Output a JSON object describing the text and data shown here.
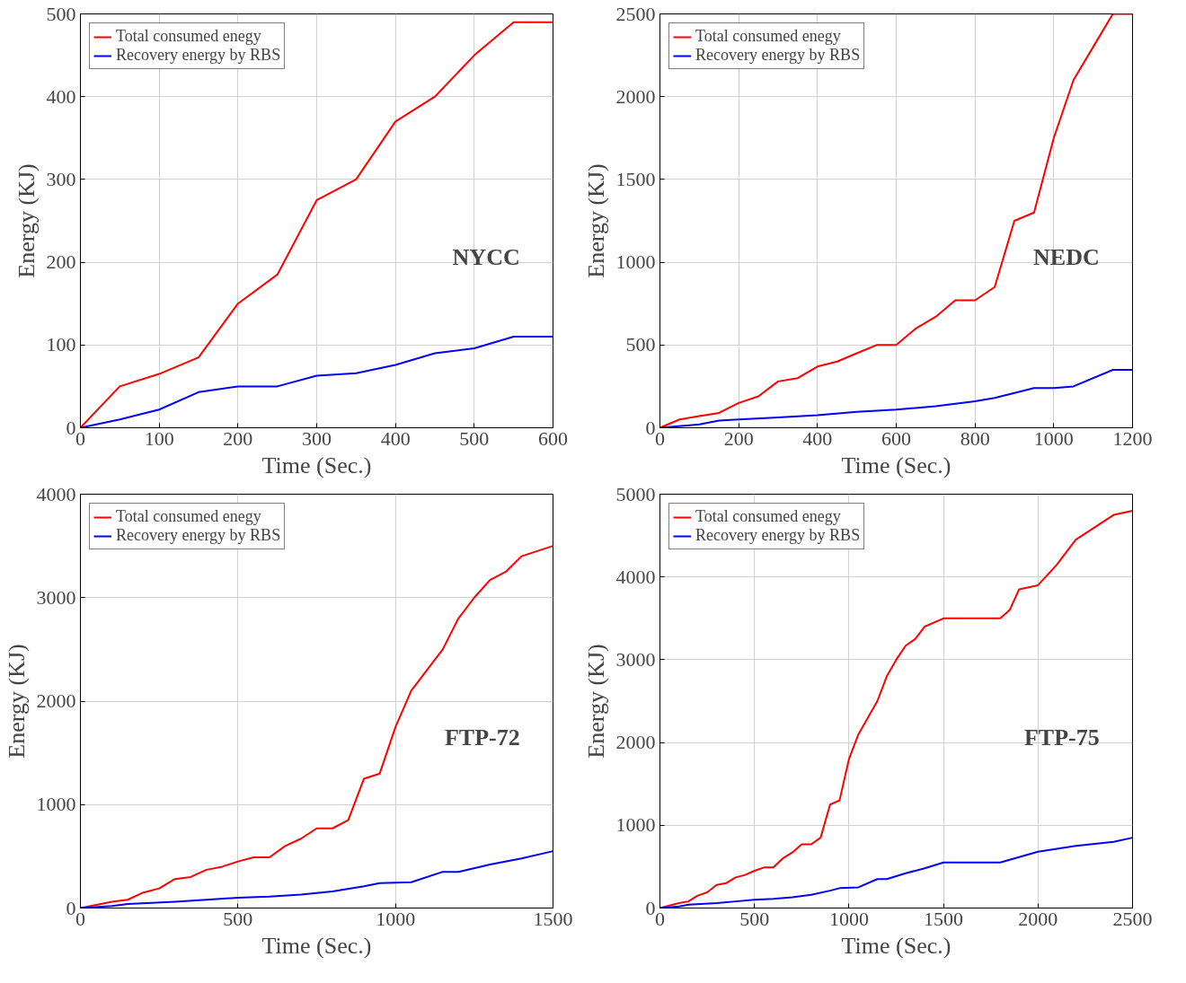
{
  "chart_data": [
    {
      "type": "line",
      "xlabel": "Time (Sec.)",
      "ylabel": "Energy (KJ)",
      "annotations": [
        "NYCC"
      ],
      "xlim": [
        0,
        600
      ],
      "ylim": [
        0,
        500
      ],
      "xticks": [
        0,
        100,
        200,
        300,
        400,
        500,
        600
      ],
      "yticks": [
        0,
        100,
        200,
        300,
        400,
        500
      ],
      "grid": true,
      "legend": "top left",
      "series": [
        {
          "name": "Total consumed enegy",
          "color": "#ff0000",
          "x": [
            0,
            50,
            100,
            150,
            200,
            250,
            300,
            350,
            400,
            450,
            500,
            550,
            600
          ],
          "values": [
            0,
            50,
            65,
            85,
            150,
            185,
            275,
            300,
            370,
            400,
            450,
            490,
            490
          ]
        },
        {
          "name": "Recovery energy by RBS",
          "color": "#0000ff",
          "x": [
            0,
            50,
            100,
            150,
            200,
            250,
            300,
            350,
            400,
            450,
            500,
            550,
            600
          ],
          "values": [
            0,
            10,
            22,
            43,
            50,
            50,
            63,
            66,
            76,
            90,
            96,
            110,
            110
          ]
        }
      ]
    },
    {
      "type": "line",
      "xlabel": "Time (Sec.)",
      "ylabel": "Energy (KJ)",
      "annotations": [
        "NEDC"
      ],
      "xlim": [
        0,
        1200
      ],
      "ylim": [
        0,
        2500
      ],
      "xticks": [
        0,
        200,
        400,
        600,
        800,
        1000,
        1200
      ],
      "yticks": [
        0,
        500,
        1000,
        1500,
        2000,
        2500
      ],
      "grid": true,
      "legend": "top left",
      "series": [
        {
          "name": "Total consumed enegy",
          "color": "#ff0000",
          "x": [
            0,
            50,
            100,
            150,
            200,
            250,
            300,
            350,
            400,
            450,
            500,
            550,
            600,
            650,
            700,
            750,
            800,
            850,
            900,
            950,
            1000,
            1050,
            1100,
            1150,
            1200
          ],
          "values": [
            0,
            50,
            70,
            90,
            150,
            190,
            280,
            300,
            370,
            400,
            450,
            500,
            500,
            600,
            670,
            770,
            770,
            850,
            1250,
            1300,
            1750,
            2100,
            2300,
            2500,
            2500
          ]
        },
        {
          "name": "Recovery energy by RBS",
          "color": "#0000ff",
          "x": [
            0,
            100,
            150,
            200,
            300,
            400,
            500,
            600,
            700,
            800,
            850,
            900,
            950,
            1000,
            1050,
            1150,
            1200
          ],
          "values": [
            0,
            20,
            43,
            50,
            63,
            76,
            96,
            110,
            130,
            160,
            180,
            210,
            240,
            240,
            250,
            350,
            350
          ]
        }
      ]
    },
    {
      "type": "line",
      "xlabel": "Time (Sec.)",
      "ylabel": "Energy (KJ)",
      "annotations": [
        "FTP-72"
      ],
      "xlim": [
        0,
        1500
      ],
      "ylim": [
        0,
        4000
      ],
      "xticks": [
        0,
        500,
        1000,
        1500
      ],
      "yticks": [
        0,
        1000,
        2000,
        3000,
        4000
      ],
      "grid": true,
      "legend": "top left",
      "series": [
        {
          "name": "Total consumed enegy",
          "color": "#ff0000",
          "x": [
            0,
            100,
            150,
            200,
            250,
            300,
            350,
            400,
            450,
            500,
            550,
            600,
            650,
            700,
            750,
            800,
            850,
            900,
            950,
            1000,
            1050,
            1100,
            1150,
            1200,
            1250,
            1300,
            1350,
            1400,
            1500
          ],
          "values": [
            0,
            60,
            80,
            150,
            190,
            280,
            300,
            370,
            400,
            450,
            490,
            490,
            600,
            670,
            770,
            770,
            850,
            1250,
            1300,
            1750,
            2100,
            2300,
            2500,
            2800,
            3000,
            3170,
            3250,
            3400,
            3500
          ]
        },
        {
          "name": "Recovery energy by RBS",
          "color": "#0000ff",
          "x": [
            0,
            100,
            150,
            300,
            400,
            500,
            600,
            700,
            800,
            900,
            950,
            1050,
            1150,
            1200,
            1300,
            1400,
            1500
          ],
          "values": [
            0,
            20,
            40,
            60,
            80,
            100,
            110,
            130,
            160,
            210,
            240,
            250,
            350,
            350,
            420,
            480,
            550
          ]
        }
      ]
    },
    {
      "type": "line",
      "xlabel": "Time (Sec.)",
      "ylabel": "Energy (KJ)",
      "annotations": [
        "FTP-75"
      ],
      "xlim": [
        0,
        2500
      ],
      "ylim": [
        0,
        5000
      ],
      "xticks": [
        0,
        500,
        1000,
        1500,
        2000,
        2500
      ],
      "yticks": [
        0,
        1000,
        2000,
        3000,
        4000,
        5000
      ],
      "grid": true,
      "legend": "top left",
      "series": [
        {
          "name": "Total consumed enegy",
          "color": "#ff0000",
          "x": [
            0,
            100,
            150,
            200,
            250,
            300,
            350,
            400,
            450,
            500,
            550,
            600,
            650,
            700,
            750,
            800,
            850,
            900,
            950,
            1000,
            1050,
            1100,
            1150,
            1200,
            1250,
            1300,
            1350,
            1400,
            1500,
            1800,
            1850,
            1900,
            2000,
            2100,
            2200,
            2300,
            2400,
            2500
          ],
          "values": [
            0,
            60,
            80,
            150,
            190,
            280,
            300,
            370,
            400,
            450,
            490,
            490,
            600,
            670,
            770,
            770,
            850,
            1250,
            1300,
            1800,
            2100,
            2300,
            2500,
            2800,
            3000,
            3170,
            3250,
            3400,
            3500,
            3500,
            3600,
            3850,
            3900,
            4150,
            4450,
            4600,
            4750,
            4800
          ]
        },
        {
          "name": "Recovery energy by RBS",
          "color": "#0000ff",
          "x": [
            0,
            100,
            150,
            300,
            400,
            500,
            600,
            700,
            800,
            900,
            950,
            1050,
            1150,
            1200,
            1300,
            1400,
            1500,
            1800,
            2000,
            2200,
            2400,
            2500
          ],
          "values": [
            0,
            20,
            40,
            60,
            80,
            100,
            110,
            130,
            160,
            210,
            240,
            250,
            350,
            350,
            420,
            480,
            550,
            550,
            680,
            750,
            800,
            850
          ]
        }
      ]
    }
  ]
}
